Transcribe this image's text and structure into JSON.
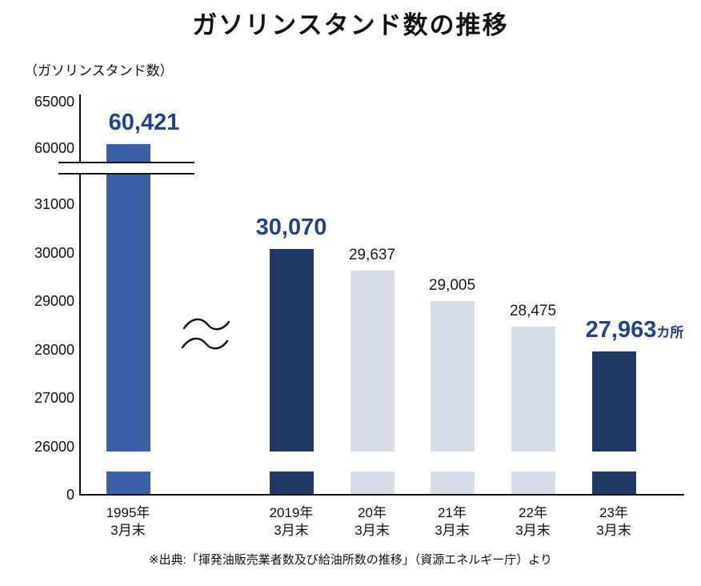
{
  "title": "ガソリンスタンド数の推移",
  "y_axis_unit": "（ガソリンスタンド数）",
  "source_note": "※出典:「揮発油販売業者数及び給油所数の推移」（資源エネルギー庁）より",
  "colors": {
    "bar_blue": "#3d5fa8",
    "bar_navy": "#1f3864",
    "bar_light": "#d6dce8",
    "label_accent": "#24418c",
    "axis": "#111111",
    "text": "#111111"
  },
  "chart_data": {
    "type": "bar",
    "title": "ガソリンスタンド数の推移",
    "ylabel": "（ガソリンスタンド数）",
    "categories": [
      {
        "line1": "1995年",
        "line2": "3月末"
      },
      {
        "line1": "2019年",
        "line2": "3月末"
      },
      {
        "line1": "20年",
        "line2": "3月末"
      },
      {
        "line1": "21年",
        "line2": "3月末"
      },
      {
        "line1": "22年",
        "line2": "3月末"
      },
      {
        "line1": "23年",
        "line2": "3月末"
      }
    ],
    "values": [
      60421,
      30070,
      29637,
      29005,
      28475,
      27963
    ],
    "value_labels": [
      "60,421",
      "30,070",
      "29,637",
      "29,005",
      "28,475",
      "27,963"
    ],
    "value_label_suffixes": [
      "",
      "",
      "",
      "",
      "",
      "カ所"
    ],
    "emphasized": [
      true,
      true,
      false,
      false,
      false,
      true
    ],
    "bar_styles": [
      "blue",
      "navy",
      "light",
      "light",
      "light",
      "navy"
    ],
    "y_ticks": [
      65000,
      60000,
      31000,
      30000,
      29000,
      28000,
      27000,
      26000,
      0
    ],
    "y_axis_breaks": [
      [
        0,
        26000
      ],
      [
        31000,
        60000
      ]
    ],
    "grid": false,
    "legend": false
  }
}
